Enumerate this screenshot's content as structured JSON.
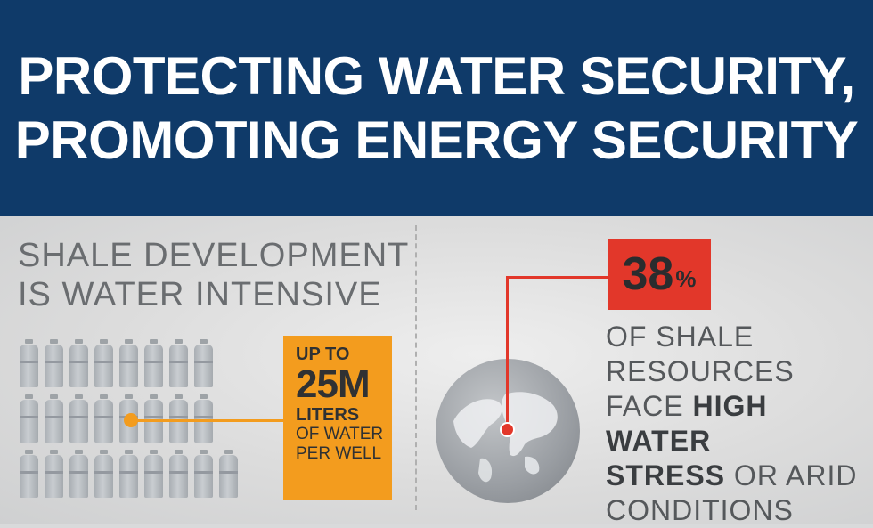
{
  "header": {
    "line1": "PROTECTING WATER SECURITY,",
    "line2": "PROMOTING ENERGY SECURITY",
    "background": "#0f3a69"
  },
  "left": {
    "heading_line1": "SHALE DEVELOPMENT",
    "heading_line2": "IS WATER INTENSIVE",
    "callout": {
      "up_to": "UP TO",
      "amount": "25M",
      "unit": "LITERS",
      "line1": "OF WATER",
      "line2": "PER WELL",
      "color": "#f39c1e"
    },
    "bottle_icon": "water-bottle-icon"
  },
  "right": {
    "stat": {
      "number": "38",
      "percent": "%",
      "color": "#e2372a"
    },
    "text": {
      "line1": "OF SHALE",
      "line2": "RESOURCES",
      "line3_prefix": "FACE ",
      "line3_bold": "HIGH WATER",
      "line4_bold": "STRESS",
      "line4_suffix": " OR ARID",
      "line5": "CONDITIONS"
    },
    "globe_icon": "globe-icon"
  }
}
